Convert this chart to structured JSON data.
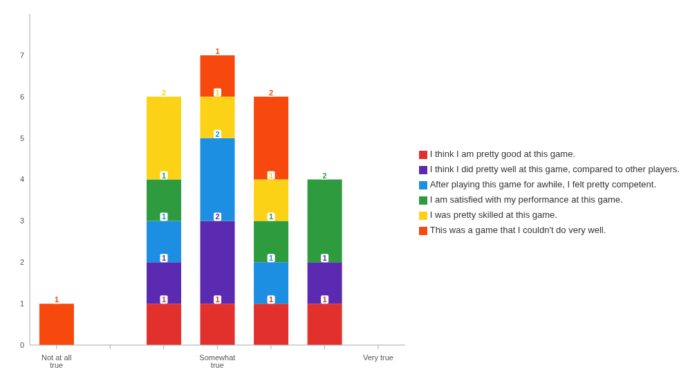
{
  "chart_data": {
    "type": "bar",
    "stacked": true,
    "categories": [
      "Not at all true",
      null,
      null,
      "Somewhat true",
      null,
      null,
      "Very true"
    ],
    "series": [
      {
        "name": "I think I am pretty good at this game.",
        "color": "#e2302d",
        "values": [
          null,
          null,
          1,
          1,
          1,
          1,
          null
        ]
      },
      {
        "name": "I think I did pretty well at this game, compared to other players.",
        "color": "#5a2bb0",
        "values": [
          null,
          null,
          1,
          2,
          null,
          1,
          null
        ]
      },
      {
        "name": "After playing this game for awhile, I felt pretty competent.",
        "color": "#1c8fe3",
        "values": [
          null,
          null,
          1,
          2,
          1,
          null,
          null
        ]
      },
      {
        "name": "I am satisfied with my performance at this game.",
        "color": "#2f9b3f",
        "values": [
          null,
          null,
          1,
          null,
          1,
          2,
          null
        ]
      },
      {
        "name": "I was pretty skilled at this game.",
        "color": "#fcd216",
        "values": [
          null,
          null,
          2,
          1,
          1,
          null,
          null
        ]
      },
      {
        "name": "This was a game that I couldn't do very well.",
        "color": "#f7490e",
        "values": [
          1,
          null,
          null,
          1,
          2,
          null,
          null
        ]
      }
    ],
    "ylim": [
      0,
      8
    ],
    "yticks": [
      0,
      1,
      2,
      3,
      4,
      5,
      6,
      7
    ],
    "grid": false,
    "legend": "right",
    "data_labels": true
  }
}
